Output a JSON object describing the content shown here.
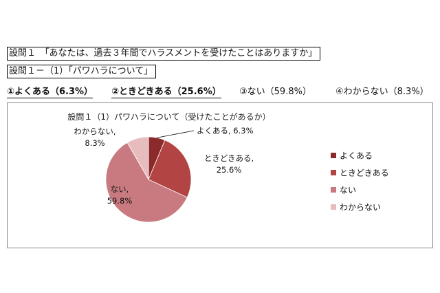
{
  "question": {
    "main": "設問１　「あなたは、過去３年間でハラスメントを受けたことはありますか」",
    "sub": "設問１－（1）「パワハラについて」"
  },
  "answers": [
    {
      "label": "①よくある（6.3%）"
    },
    {
      "label": "②ときどきある（25.6%）"
    },
    {
      "label": "③ない（59.8%）"
    },
    {
      "label": "④わからない（8.3%）"
    }
  ],
  "chart_data": {
    "type": "pie",
    "title": "設問１（1）パワハラについて（受けたことがあるか）",
    "slices": [
      {
        "name": "よくある",
        "value": 6.3,
        "color": "#8b2a2a",
        "data_label": [
          "よくある, 6.3%"
        ]
      },
      {
        "name": "ときどきある",
        "value": 25.6,
        "color": "#b24444",
        "data_label": [
          "ときどきある,",
          "25.6%"
        ]
      },
      {
        "name": "ない",
        "value": 59.8,
        "color": "#c87a80",
        "data_label": [
          "ない,",
          "59.8%"
        ]
      },
      {
        "name": "わからない",
        "value": 8.3,
        "color": "#e7bcbf",
        "data_label": [
          "わからない,",
          "8.3%"
        ]
      }
    ],
    "legend": {
      "position": "right"
    }
  }
}
